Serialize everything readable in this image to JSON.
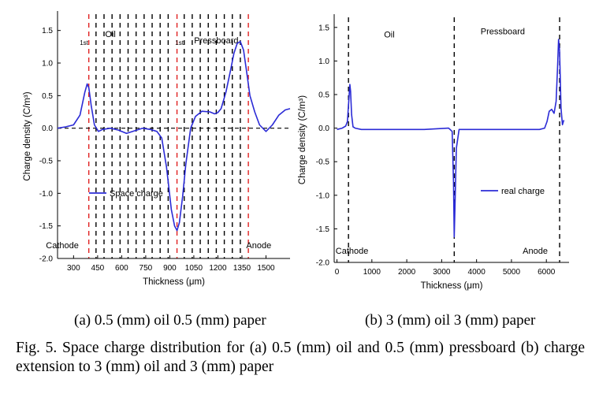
{
  "figure_caption": "Fig. 5. Space charge distribution for (a) 0.5 (mm) oil and 0.5 (mm) pressboard (b) charge extension to 3 (mm) oil and 3 (mm) paper",
  "colors": {
    "curve": "#2b2bd6",
    "interface_a": "#e02020",
    "guide": "#000000"
  },
  "chart_data": [
    {
      "type": "line",
      "panel_label": "(a) 0.5 (mm) oil 0.5 (mm) paper",
      "xlabel": "Thickness (μm)",
      "ylabel": "Charge density (C/m³)",
      "xlim": [
        200,
        1650
      ],
      "ylim": [
        -2.0,
        1.75
      ],
      "xticks": [
        "300",
        "450",
        "600",
        "750",
        "900",
        "1050",
        "1200",
        "1350",
        "1500"
      ],
      "xtick_values": [
        300,
        450,
        600,
        750,
        900,
        1050,
        1200,
        1350,
        1500
      ],
      "yticks": [
        "1.5",
        "1.0",
        "0.5",
        "0.0",
        "-0.5",
        "-1.0",
        "-1.5",
        "-2.0"
      ],
      "ytick_values": [
        1.5,
        1.0,
        0.5,
        0.0,
        -0.5,
        -1.0,
        -1.5,
        -2.0
      ],
      "annotations": [
        {
          "text": "1st",
          "x": 365,
          "y": 1.28
        },
        {
          "text": "Oil",
          "x": 530,
          "y": 1.4
        },
        {
          "text": "1st",
          "x": 960,
          "y": 1.28
        },
        {
          "text": "Pressboard",
          "x": 1190,
          "y": 1.3
        },
        {
          "text": "Cathode",
          "x": 230,
          "y": -1.84
        },
        {
          "text": "Anode",
          "x": 1455,
          "y": -1.84
        }
      ],
      "interfaces": [
        395,
        945,
        1390
      ],
      "guide_lines": [
        440,
        490,
        540,
        590,
        640,
        690,
        740,
        790,
        840,
        890,
        990,
        1040,
        1090,
        1140,
        1190,
        1240,
        1290,
        1340
      ],
      "zero_line": true,
      "legend": {
        "label": "Space charge",
        "position": "left"
      },
      "series": [
        {
          "name": "Space charge",
          "x": [
            200,
            250,
            300,
            340,
            370,
            385,
            395,
            410,
            430,
            455,
            480,
            530,
            580,
            630,
            680,
            730,
            780,
            820,
            850,
            880,
            910,
            930,
            945,
            960,
            980,
            1000,
            1030,
            1060,
            1100,
            1150,
            1180,
            1200,
            1220,
            1250,
            1280,
            1300,
            1320,
            1340,
            1360,
            1380,
            1400,
            1430,
            1460,
            1500,
            1540,
            1580,
            1620,
            1650
          ],
          "y": [
            0.0,
            0.02,
            0.05,
            0.2,
            0.55,
            0.68,
            0.62,
            0.35,
            0.05,
            -0.05,
            -0.02,
            0.0,
            -0.03,
            -0.08,
            -0.04,
            0.0,
            -0.02,
            -0.05,
            -0.15,
            -0.6,
            -1.25,
            -1.5,
            -1.57,
            -1.45,
            -1.05,
            -0.55,
            0.0,
            0.18,
            0.26,
            0.25,
            0.22,
            0.24,
            0.3,
            0.55,
            0.9,
            1.15,
            1.3,
            1.33,
            1.2,
            0.85,
            0.5,
            0.25,
            0.05,
            -0.05,
            0.05,
            0.2,
            0.28,
            0.3
          ]
        }
      ]
    },
    {
      "type": "line",
      "panel_label": "(b) 3 (mm) oil 3 (mm) paper",
      "xlabel": "Thickness (μm)",
      "ylabel": "Charge density (C/m³)",
      "xlim": [
        -80,
        6650
      ],
      "ylim": [
        -2.0,
        1.65
      ],
      "xticks": [
        "0",
        "1000",
        "2000",
        "3000",
        "4000",
        "5000",
        "6000"
      ],
      "xtick_values": [
        0,
        1000,
        2000,
        3000,
        4000,
        5000,
        6000
      ],
      "yticks": [
        "1.5",
        "1.0",
        "0.5",
        "0.0",
        "-0.5",
        "-1.0",
        "-1.5",
        "-2.0"
      ],
      "ytick_values": [
        1.5,
        1.0,
        0.5,
        0.0,
        -0.5,
        -1.0,
        -1.5,
        -2.0
      ],
      "annotations": [
        {
          "text": "Oil",
          "x": 1500,
          "y": 1.35
        },
        {
          "text": "Pressboard",
          "x": 4750,
          "y": 1.4
        },
        {
          "text": "Cathode",
          "x": 430,
          "y": -1.87
        },
        {
          "text": "Anode",
          "x": 5680,
          "y": -1.87
        }
      ],
      "interfaces": [
        330,
        3360,
        6380
      ],
      "legend": {
        "label": "real charge",
        "position": "right"
      },
      "series": [
        {
          "name": "real charge",
          "x": [
            0,
            150,
            250,
            300,
            340,
            370,
            390,
            420,
            460,
            520,
            700,
            1500,
            2500,
            3200,
            3300,
            3340,
            3360,
            3380,
            3420,
            3500,
            4000,
            5000,
            5800,
            5950,
            6020,
            6080,
            6150,
            6220,
            6280,
            6320,
            6350,
            6380,
            6420,
            6460,
            6500
          ],
          "y": [
            -0.02,
            0.0,
            0.03,
            0.1,
            0.42,
            0.65,
            0.55,
            0.2,
            0.02,
            0.0,
            -0.02,
            -0.02,
            -0.02,
            0.0,
            -0.05,
            -0.8,
            -1.62,
            -1.2,
            -0.3,
            -0.02,
            -0.02,
            -0.02,
            -0.02,
            0.0,
            0.1,
            0.25,
            0.28,
            0.22,
            0.4,
            0.9,
            1.32,
            1.15,
            0.3,
            0.05,
            0.12
          ]
        }
      ]
    }
  ]
}
